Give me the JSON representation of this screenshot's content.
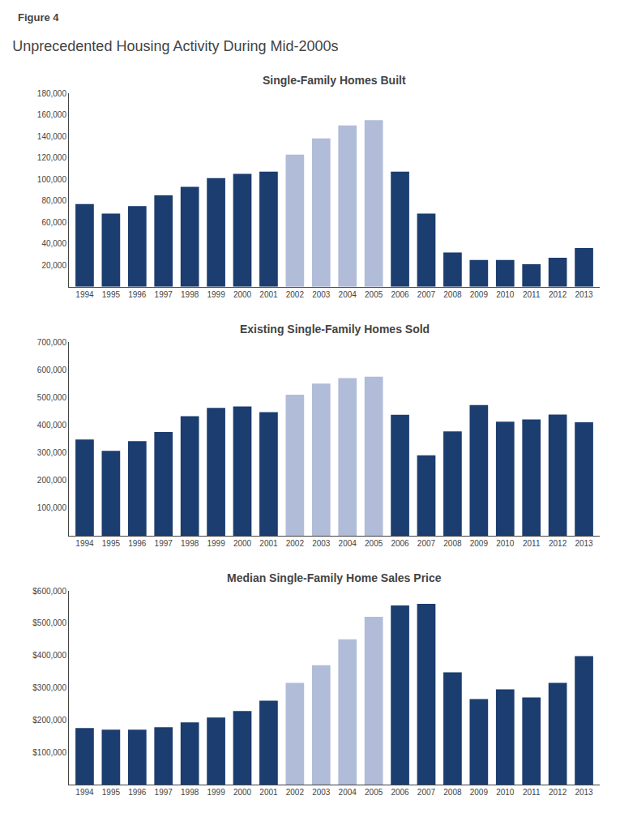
{
  "title": "Unprecedented Housing Activity During Mid-2000s",
  "annotations": [
    "Figure 4"
  ],
  "chart_data": [
    {
      "type": "bar",
      "title": "Single-Family Homes Built",
      "categories": [
        "1994",
        "1995",
        "1996",
        "1997",
        "1998",
        "1999",
        "2000",
        "2001",
        "2002",
        "2003",
        "2004",
        "2005",
        "2006",
        "2007",
        "2008",
        "2009",
        "2010",
        "2011",
        "2012",
        "2013"
      ],
      "values": [
        77000,
        68000,
        75000,
        85000,
        93000,
        101000,
        105000,
        107000,
        123000,
        138000,
        150000,
        155000,
        107000,
        68000,
        32000,
        25000,
        25000,
        21000,
        27000,
        36000
      ],
      "colors": [
        "#1b3d6f",
        "#1b3d6f",
        "#1b3d6f",
        "#1b3d6f",
        "#1b3d6f",
        "#1b3d6f",
        "#1b3d6f",
        "#1b3d6f",
        "#b0bcd8",
        "#b0bcd8",
        "#b0bcd8",
        "#b0bcd8",
        "#1b3d6f",
        "#1b3d6f",
        "#1b3d6f",
        "#1b3d6f",
        "#1b3d6f",
        "#1b3d6f",
        "#1b3d6f",
        "#1b3d6f"
      ],
      "ylim": [
        0,
        180000
      ],
      "yticks": [
        {
          "value": 20000,
          "label": "20,000"
        },
        {
          "value": 40000,
          "label": "40,000"
        },
        {
          "value": 60000,
          "label": "60,000"
        },
        {
          "value": 80000,
          "label": "80,000"
        },
        {
          "value": 100000,
          "label": "100,000"
        },
        {
          "value": 120000,
          "label": "120,000"
        },
        {
          "value": 140000,
          "label": "140,000"
        },
        {
          "value": 160000,
          "label": "160,000"
        },
        {
          "value": 180000,
          "label": "180,000"
        }
      ],
      "grid": false
    },
    {
      "type": "bar",
      "title": "Existing Single-Family Homes Sold",
      "categories": [
        "1994",
        "1995",
        "1996",
        "1997",
        "1998",
        "1999",
        "2000",
        "2001",
        "2002",
        "2003",
        "2004",
        "2005",
        "2006",
        "2007",
        "2008",
        "2009",
        "2010",
        "2011",
        "2012",
        "2013"
      ],
      "values": [
        348000,
        307000,
        342000,
        375000,
        432000,
        462000,
        467000,
        447000,
        510000,
        550000,
        570000,
        575000,
        437000,
        291000,
        377000,
        472000,
        412000,
        420000,
        438000,
        410000
      ],
      "colors": [
        "#1b3d6f",
        "#1b3d6f",
        "#1b3d6f",
        "#1b3d6f",
        "#1b3d6f",
        "#1b3d6f",
        "#1b3d6f",
        "#1b3d6f",
        "#b0bcd8",
        "#b0bcd8",
        "#b0bcd8",
        "#b0bcd8",
        "#1b3d6f",
        "#1b3d6f",
        "#1b3d6f",
        "#1b3d6f",
        "#1b3d6f",
        "#1b3d6f",
        "#1b3d6f",
        "#1b3d6f"
      ],
      "ylim": [
        0,
        700000
      ],
      "yticks": [
        {
          "value": 100000,
          "label": "100,000"
        },
        {
          "value": 200000,
          "label": "200,000"
        },
        {
          "value": 300000,
          "label": "300,000"
        },
        {
          "value": 400000,
          "label": "400,000"
        },
        {
          "value": 500000,
          "label": "500,000"
        },
        {
          "value": 600000,
          "label": "600,000"
        },
        {
          "value": 700000,
          "label": "700,000"
        }
      ],
      "grid": false
    },
    {
      "type": "bar",
      "title": "Median Single-Family Home Sales Price",
      "categories": [
        "1994",
        "1995",
        "1996",
        "1997",
        "1998",
        "1999",
        "2000",
        "2001",
        "2002",
        "2003",
        "2004",
        "2005",
        "2006",
        "2007",
        "2008",
        "2009",
        "2010",
        "2011",
        "2012",
        "2013"
      ],
      "values": [
        175000,
        170000,
        170000,
        178000,
        193000,
        208000,
        228000,
        260000,
        315000,
        370000,
        450000,
        520000,
        555000,
        560000,
        348000,
        265000,
        295000,
        270000,
        315000,
        398000
      ],
      "colors": [
        "#1b3d6f",
        "#1b3d6f",
        "#1b3d6f",
        "#1b3d6f",
        "#1b3d6f",
        "#1b3d6f",
        "#1b3d6f",
        "#1b3d6f",
        "#b0bcd8",
        "#b0bcd8",
        "#b0bcd8",
        "#b0bcd8",
        "#1b3d6f",
        "#1b3d6f",
        "#1b3d6f",
        "#1b3d6f",
        "#1b3d6f",
        "#1b3d6f",
        "#1b3d6f",
        "#1b3d6f"
      ],
      "ylim": [
        0,
        600000
      ],
      "yticks": [
        {
          "value": 100000,
          "label": "$100,000"
        },
        {
          "value": 200000,
          "label": "$200,000"
        },
        {
          "value": 300000,
          "label": "$300,000"
        },
        {
          "value": 400000,
          "label": "$400,000"
        },
        {
          "value": 500000,
          "label": "$500,000"
        },
        {
          "value": 600000,
          "label": "$600,000"
        }
      ],
      "grid": false
    }
  ]
}
